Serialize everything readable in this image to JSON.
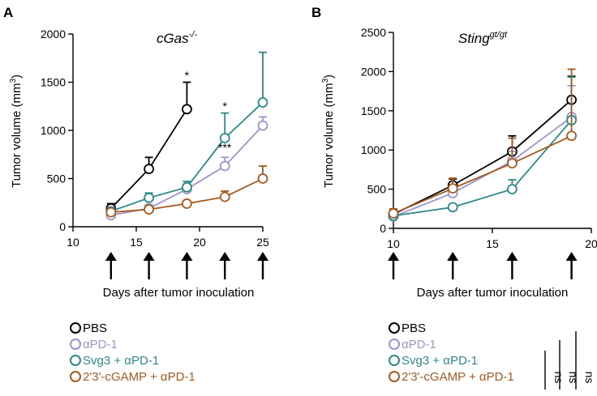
{
  "chart_data": [
    {
      "type": "line",
      "panel_label": "A",
      "title": "cGas",
      "title_sup": "-/-",
      "xlabel": "Days after tumor inoculation",
      "ylabel": "Tumor volume (mm",
      "ylabel_sup": "3",
      "ylabel_end": ")",
      "xlim": [
        10,
        25
      ],
      "ylim": [
        0,
        2000
      ],
      "xticks": [
        10,
        15,
        20,
        25
      ],
      "xtick_labels": [
        "10",
        "15",
        "20",
        "25"
      ],
      "yticks": [
        0,
        500,
        1000,
        1500,
        2000
      ],
      "ytick_labels": [
        "0",
        "500",
        "1000",
        "1500",
        "2000"
      ],
      "injection_days": [
        13,
        16,
        19,
        22,
        25
      ],
      "series": [
        {
          "name": "PBS",
          "color": "#000000",
          "x": [
            13,
            16,
            19
          ],
          "values": [
            190,
            600,
            1220
          ],
          "errors": [
            50,
            120,
            280
          ]
        },
        {
          "name": "αPD-1",
          "color": "#9b95c9",
          "x": [
            13,
            16,
            19,
            22,
            25
          ],
          "values": [
            120,
            190,
            390,
            630,
            1050
          ],
          "errors": [
            30,
            40,
            50,
            90,
            90
          ]
        },
        {
          "name": "Svg3 + αPD-1",
          "color": "#2b8a8a",
          "x": [
            13,
            16,
            19,
            22,
            25
          ],
          "values": [
            160,
            300,
            410,
            920,
            1290
          ],
          "errors": [
            40,
            50,
            60,
            260,
            520
          ]
        },
        {
          "name": "2'3'-cGAMP + αPD-1",
          "color": "#a55a1e",
          "x": [
            13,
            16,
            19,
            22,
            25
          ],
          "values": [
            150,
            180,
            240,
            310,
            500
          ],
          "errors": [
            20,
            25,
            30,
            60,
            130
          ]
        }
      ],
      "annotations": [
        {
          "text": "*",
          "x": 19,
          "y": 1530
        },
        {
          "text": "*",
          "x": 22,
          "y": 1210
        },
        {
          "text": "***",
          "x": 22,
          "y": 780
        }
      ],
      "legend": [
        "PBS",
        "αPD-1",
        "Svg3 + αPD-1",
        "2'3'-cGAMP + αPD-1"
      ]
    },
    {
      "type": "line",
      "panel_label": "B",
      "title": "Sting",
      "title_sup": "gt/gt",
      "xlabel": "Days after tumor inoculation",
      "ylabel": "Tumor volume (mm",
      "ylabel_sup": "3",
      "ylabel_end": ")",
      "xlim": [
        10,
        20
      ],
      "ylim": [
        0,
        2500
      ],
      "xticks": [
        10,
        15,
        20
      ],
      "xtick_labels": [
        "10",
        "15",
        "20"
      ],
      "yticks": [
        0,
        500,
        1000,
        1500,
        2000,
        2500
      ],
      "ytick_labels": [
        "0",
        "500",
        "1000",
        "1500",
        "2000",
        "2500"
      ],
      "injection_days": [
        10,
        13,
        16,
        19
      ],
      "series": [
        {
          "name": "PBS",
          "color": "#000000",
          "x": [
            10,
            13,
            16,
            19
          ],
          "values": [
            180,
            550,
            980,
            1640
          ],
          "errors": [
            50,
            80,
            200,
            300
          ]
        },
        {
          "name": "αPD-1",
          "color": "#9b95c9",
          "x": [
            10,
            13,
            16,
            19
          ],
          "values": [
            150,
            450,
            860,
            1420
          ],
          "errors": [
            30,
            60,
            120,
            400
          ]
        },
        {
          "name": "Svg3 + αPD-1",
          "color": "#2b8a8a",
          "x": [
            10,
            13,
            16,
            19
          ],
          "values": [
            160,
            270,
            500,
            1380
          ],
          "errors": [
            30,
            40,
            120,
            550
          ]
        },
        {
          "name": "2'3'-cGAMP + αPD-1",
          "color": "#a55a1e",
          "x": [
            10,
            13,
            16,
            19
          ],
          "values": [
            190,
            510,
            830,
            1180
          ],
          "errors": [
            60,
            130,
            320,
            850
          ]
        }
      ],
      "legend": [
        "PBS",
        "αPD-1",
        "Svg3 + αPD-1",
        "2'3'-cGAMP + αPD-1"
      ],
      "significance": [
        "ns",
        "ns",
        "ns"
      ]
    }
  ]
}
